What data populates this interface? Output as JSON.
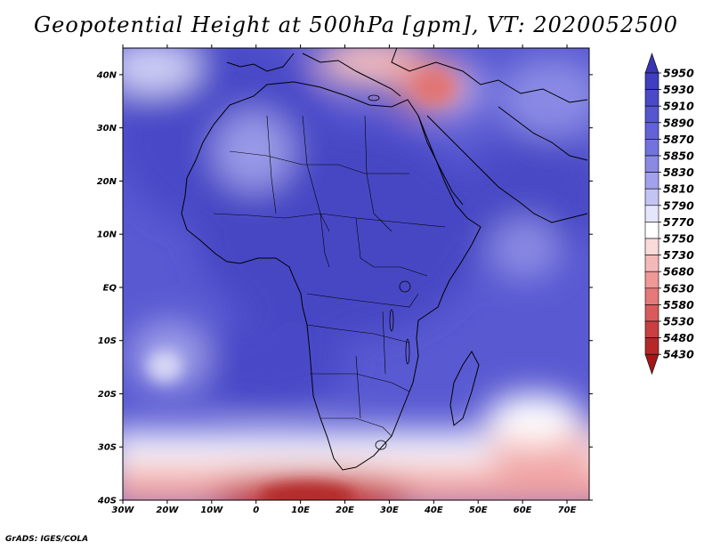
{
  "title": "Geopotential Height at 500hPa [gpm], VT: 2020052500",
  "credit": "GrADS: IGES/COLA",
  "map": {
    "lat_labels": [
      "40N",
      "30N",
      "20N",
      "10N",
      "EQ",
      "10S",
      "20S",
      "30S",
      "40S"
    ],
    "lon_labels": [
      "30W",
      "20W",
      "10W",
      "0",
      "10E",
      "20E",
      "30E",
      "40E",
      "50E",
      "60E",
      "70E"
    ],
    "lat_range": [
      -40,
      45
    ],
    "lon_range": [
      -30,
      75
    ]
  },
  "colorbar": {
    "levels": [
      "5950",
      "5930",
      "5910",
      "5890",
      "5870",
      "5850",
      "5830",
      "5810",
      "5790",
      "5770",
      "5750",
      "5730",
      "5680",
      "5630",
      "5580",
      "5530",
      "5480",
      "5430"
    ],
    "colors": [
      "#3a36b0",
      "#3f3fc0",
      "#4a4ac8",
      "#5656cf",
      "#6363d7",
      "#7373de",
      "#8a8ae5",
      "#a2a2ec",
      "#c4c4f4",
      "#e5e5fb",
      "#ffffff",
      "#fbdada",
      "#f5b8b8",
      "#ee9898",
      "#e57878",
      "#d95a5a",
      "#c94040",
      "#b62828",
      "#a01818"
    ]
  }
}
